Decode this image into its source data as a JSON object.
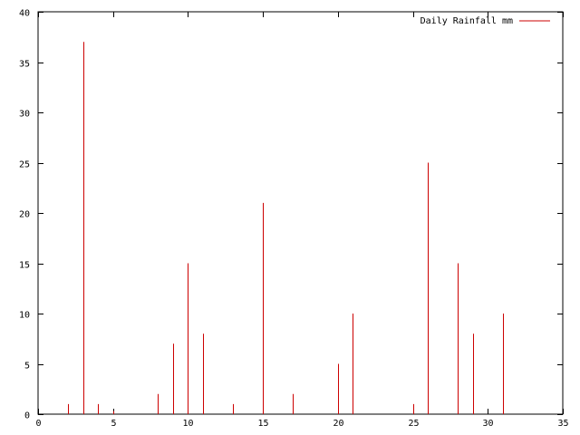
{
  "chart_data": {
    "type": "bar",
    "style": "impulses",
    "series": [
      {
        "name": "Daily Rainfall mm",
        "color": "#cc0000",
        "x": [
          2,
          3,
          4,
          5,
          8,
          9,
          10,
          11,
          13,
          15,
          17,
          20,
          21,
          25,
          26,
          28,
          29,
          31
        ],
        "values": [
          1,
          37,
          1,
          0.3,
          2,
          7,
          15,
          8,
          1,
          21,
          2,
          5,
          10,
          1,
          25,
          15,
          8,
          10
        ]
      }
    ],
    "xlim": [
      0,
      35
    ],
    "ylim": [
      0,
      40
    ],
    "xticks": [
      0,
      5,
      10,
      15,
      20,
      25,
      30,
      35
    ],
    "yticks": [
      0,
      5,
      10,
      15,
      20,
      25,
      30,
      35,
      40
    ],
    "grid": false,
    "legend_position": "top-right",
    "title": "",
    "xlabel": "",
    "ylabel": ""
  }
}
